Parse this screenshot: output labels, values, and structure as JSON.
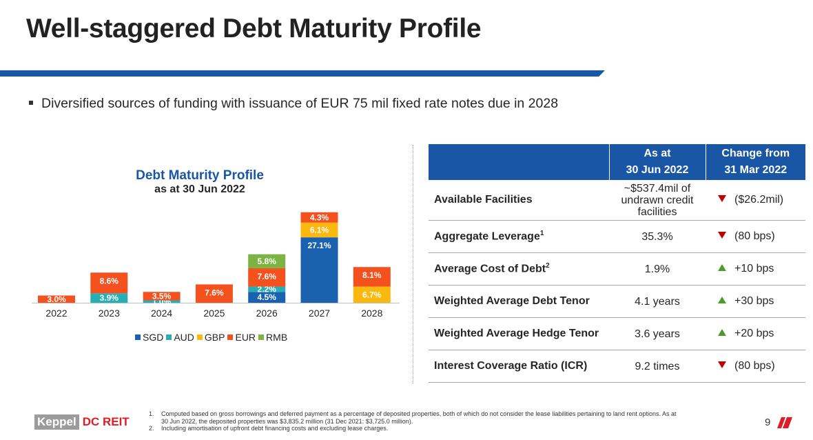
{
  "slide": {
    "title": "Well-staggered Debt Maturity Profile",
    "bullet": "Diversified sources of funding with issuance of EUR 75 mil fixed rate notes due in 2028",
    "page_number": "9"
  },
  "colors": {
    "accent": "#1a56a6",
    "logo_red": "#e11b22",
    "down": "#c00000",
    "up": "#4e9a2a"
  },
  "chart_data": {
    "type": "bar",
    "stacked": true,
    "title": "Debt Maturity Profile",
    "subtitle": "as at 30 Jun 2022",
    "categories": [
      "2022",
      "2023",
      "2024",
      "2025",
      "2026",
      "2027",
      "2028"
    ],
    "series": [
      {
        "name": "SGD",
        "color": "#1a62b0",
        "values": [
          0,
          0,
          0,
          0,
          4.5,
          27.1,
          0
        ],
        "labels": [
          "",
          "",
          "",
          "",
          "4.5%",
          "27.1%",
          ""
        ]
      },
      {
        "name": "AUD",
        "color": "#26b0b6",
        "values": [
          0,
          3.9,
          1.0,
          0,
          2.2,
          0,
          0
        ],
        "labels": [
          "",
          "3.9%",
          "1.0%",
          "",
          "2.2%",
          "",
          ""
        ]
      },
      {
        "name": "GBP",
        "color": "#fbb80f",
        "values": [
          0,
          0,
          0,
          0,
          0,
          6.1,
          6.7
        ],
        "labels": [
          "",
          "",
          "",
          "",
          "",
          "6.1%",
          "6.7%"
        ]
      },
      {
        "name": "EUR",
        "color": "#f4511e",
        "values": [
          3.0,
          8.6,
          3.5,
          7.6,
          7.6,
          4.3,
          8.1
        ],
        "labels": [
          "3.0%",
          "8.6%",
          "3.5%",
          "7.6%",
          "7.6%",
          "4.3%",
          "8.1%"
        ]
      },
      {
        "name": "RMB",
        "color": "#7cb342",
        "values": [
          0,
          0,
          0,
          0,
          5.8,
          0,
          0
        ],
        "labels": [
          "",
          "",
          "",
          "",
          "5.8%",
          "",
          ""
        ]
      }
    ],
    "legend_position": "bottom",
    "grid": false
  },
  "table": {
    "header": {
      "col2_line1": "As at",
      "col2_line2": "30 Jun 2022",
      "col3_line1": "Change from",
      "col3_line2": "31 Mar 2022"
    },
    "rows": [
      {
        "label": "Available Facilities",
        "sup": "",
        "value_lines": [
          "~$537.4mil of",
          "undrawn credit",
          "facilities"
        ],
        "direction": "down",
        "change": "($26.2mil)"
      },
      {
        "label": "Aggregate Leverage",
        "sup": "1",
        "value_lines": [
          "35.3%"
        ],
        "direction": "down",
        "change": "(80 bps)"
      },
      {
        "label": "Average Cost of Debt",
        "sup": "2",
        "value_lines": [
          "1.9%"
        ],
        "direction": "up",
        "change": "+10 bps"
      },
      {
        "label": "Weighted Average Debt Tenor",
        "sup": "",
        "value_lines": [
          "4.1 years"
        ],
        "direction": "up",
        "change": "+30 bps"
      },
      {
        "label": "Weighted Average Hedge Tenor",
        "sup": "",
        "value_lines": [
          "3.6 years"
        ],
        "direction": "up",
        "change": "+20 bps"
      },
      {
        "label": "Interest Coverage Ratio (ICR)",
        "sup": "",
        "value_lines": [
          "9.2 times"
        ],
        "direction": "down",
        "change": "(80 bps)"
      }
    ]
  },
  "footnotes": [
    {
      "num": "1.",
      "text": "Computed based on gross borrowings and deferred payment as a percentage of deposited properties, both of which do not consider the lease liabilities pertaining to land rent options. As at 30 Jun 2022, the deposited properties was $3,835.2 million (31 Dec 2021: $3,725.0 million)."
    },
    {
      "num": "2.",
      "text": "Including amortisation of upfront debt financing costs and excluding lease charges."
    }
  ],
  "logo": {
    "part1": "Keppel",
    "part2": "DC REIT"
  }
}
